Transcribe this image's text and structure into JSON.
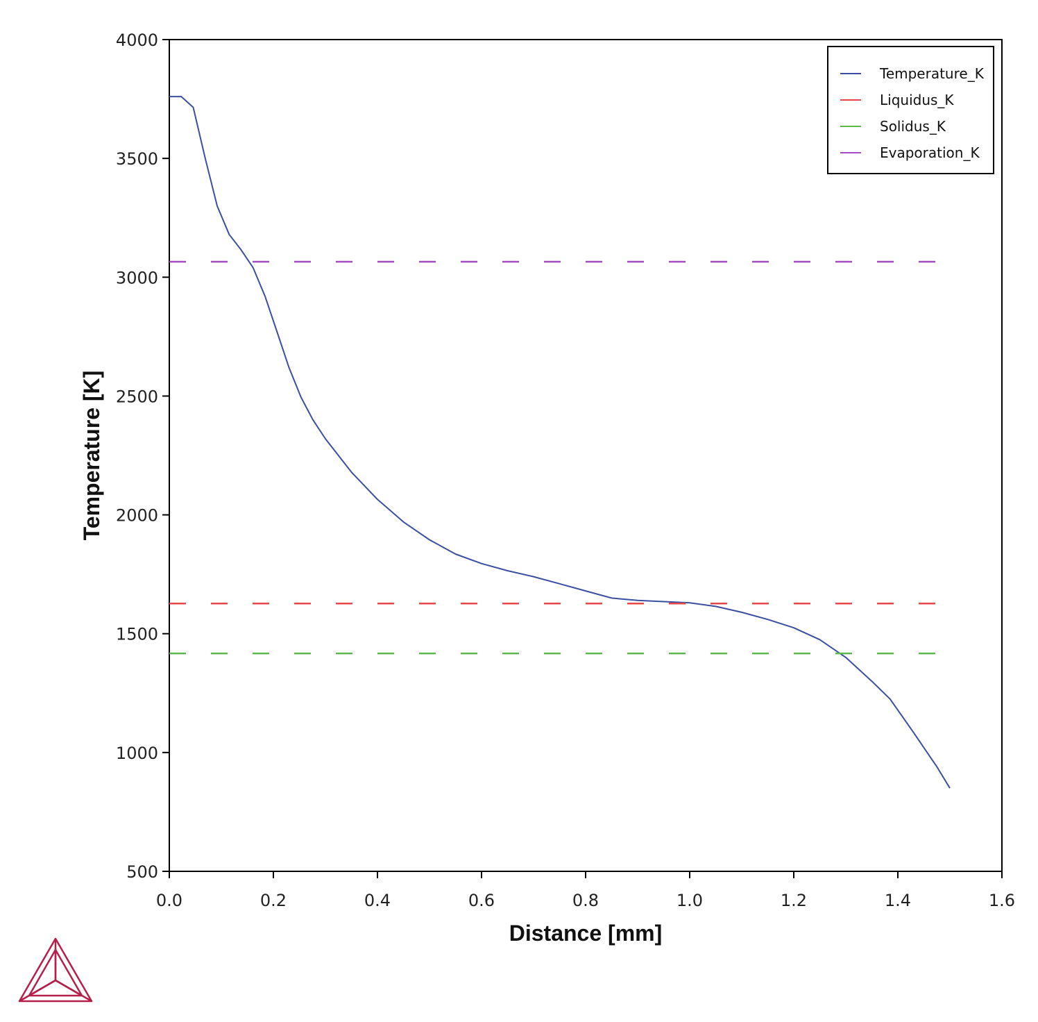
{
  "chart_data": {
    "type": "line",
    "xlabel": "Distance [mm]",
    "ylabel": "Temperature [K]",
    "xlim": [
      0.0,
      1.6
    ],
    "ylim": [
      500,
      4000
    ],
    "x_ticks": [
      "0.0",
      "0.2",
      "0.4",
      "0.6",
      "0.8",
      "1.0",
      "1.2",
      "1.4",
      "1.6"
    ],
    "y_ticks": [
      "500",
      "1000",
      "1500",
      "2000",
      "2500",
      "3000",
      "3500",
      "4000"
    ],
    "grid": false,
    "legend_position": "top-right",
    "series": [
      {
        "name": "Temperature_K",
        "color": "#3a4fa0",
        "style": "solid",
        "x": [
          0.0,
          0.023,
          0.046,
          0.069,
          0.092,
          0.115,
          0.138,
          0.161,
          0.184,
          0.207,
          0.23,
          0.253,
          0.276,
          0.3,
          0.35,
          0.4,
          0.45,
          0.5,
          0.55,
          0.6,
          0.65,
          0.7,
          0.75,
          0.8,
          0.85,
          0.9,
          0.95,
          1.0,
          1.05,
          1.1,
          1.15,
          1.2,
          1.25,
          1.3,
          1.35,
          1.385,
          1.43,
          1.475,
          1.5
        ],
        "values": [
          3760,
          3760,
          3715,
          3500,
          3300,
          3180,
          3115,
          3040,
          2920,
          2770,
          2620,
          2495,
          2400,
          2320,
          2180,
          2065,
          1970,
          1895,
          1835,
          1795,
          1765,
          1740,
          1710,
          1680,
          1650,
          1640,
          1635,
          1630,
          1615,
          1590,
          1560,
          1525,
          1475,
          1400,
          1300,
          1225,
          1085,
          940,
          850
        ]
      },
      {
        "name": "Liquidus_K",
        "color": "#e8474a",
        "style": "dashed",
        "x": [
          0.0,
          1.485
        ],
        "values": [
          1627,
          1627
        ]
      },
      {
        "name": "Solidus_K",
        "color": "#5cb84a",
        "style": "dashed",
        "x": [
          0.0,
          1.485
        ],
        "values": [
          1417,
          1417
        ]
      },
      {
        "name": "Evaporation_K",
        "color": "#a24cc2",
        "style": "dashed",
        "x": [
          0.0,
          1.485
        ],
        "values": [
          3065,
          3065
        ]
      }
    ]
  },
  "logo": {
    "name": "thermo-calc-logo",
    "color": "#b51f4a"
  }
}
